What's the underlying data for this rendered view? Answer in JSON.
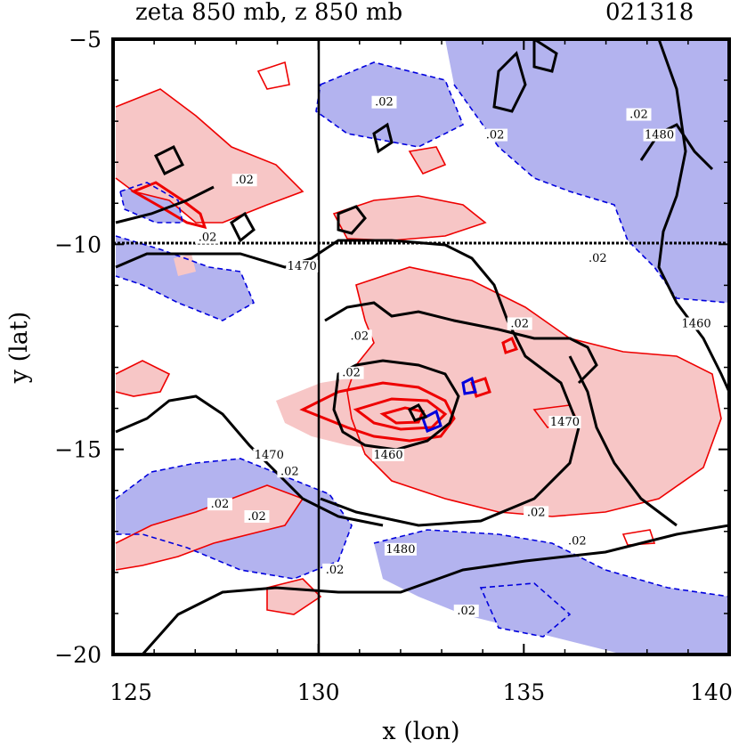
{
  "chart_data": {
    "type": "contour",
    "title_left": "zeta 850 mb, z 850 mb",
    "title_right": "021318",
    "xlabel": "x (lon)",
    "ylabel": "y (lat)",
    "xlim": [
      125,
      140
    ],
    "ylim": [
      -20,
      -5
    ],
    "xticks": [
      125,
      130,
      135,
      140
    ],
    "yticks": [
      -5,
      -10,
      -15,
      -20
    ],
    "xtick_labels": [
      "125",
      "130",
      "135",
      "140"
    ],
    "ytick_labels": [
      "−5",
      "−10",
      "−15",
      "−20"
    ],
    "reference_lines": {
      "x": 130,
      "y": -10
    },
    "colors": {
      "positive_fill": "#f7c6c6",
      "negative_fill": "#b3b3ef",
      "positive_line": "#ee0000",
      "negative_line": "#0000dd",
      "height_line": "#000000"
    },
    "contour_labels": [
      {
        "text": ".02",
        "x": 128.2,
        "y": -8.5
      },
      {
        "text": ".02",
        "x": 127.3,
        "y": -9.9
      },
      {
        "text": ".02",
        "x": 131.6,
        "y": -6.6
      },
      {
        "text": ".02",
        "x": 134.3,
        "y": -7.4
      },
      {
        "text": ".02",
        "x": 137.8,
        "y": -6.9
      },
      {
        "text": ".02",
        "x": 136.8,
        "y": -10.4
      },
      {
        "text": ".02",
        "x": 131.0,
        "y": -12.3
      },
      {
        "text": ".02",
        "x": 134.9,
        "y": -12.0
      },
      {
        "text": ".02",
        "x": 130.8,
        "y": -13.2
      },
      {
        "text": ".02",
        "x": 129.3,
        "y": -15.6
      },
      {
        "text": ".02",
        "x": 127.6,
        "y": -16.4
      },
      {
        "text": ".02",
        "x": 128.5,
        "y": -16.7
      },
      {
        "text": ".02",
        "x": 135.3,
        "y": -16.6
      },
      {
        "text": ".02",
        "x": 136.3,
        "y": -17.3
      },
      {
        "text": ".02",
        "x": 130.4,
        "y": -18.0
      },
      {
        "text": ".02",
        "x": 133.6,
        "y": -19.0
      },
      {
        "text": "1470",
        "x": 129.6,
        "y": -10.6
      },
      {
        "text": "1470",
        "x": 128.8,
        "y": -15.2
      },
      {
        "text": "1470",
        "x": 136.0,
        "y": -14.4
      },
      {
        "text": "1460",
        "x": 131.7,
        "y": -15.2
      },
      {
        "text": "1460",
        "x": 139.2,
        "y": -12.0
      },
      {
        "text": "1480",
        "x": 138.3,
        "y": -7.4
      },
      {
        "text": "1480",
        "x": 132.0,
        "y": -17.5
      }
    ]
  }
}
